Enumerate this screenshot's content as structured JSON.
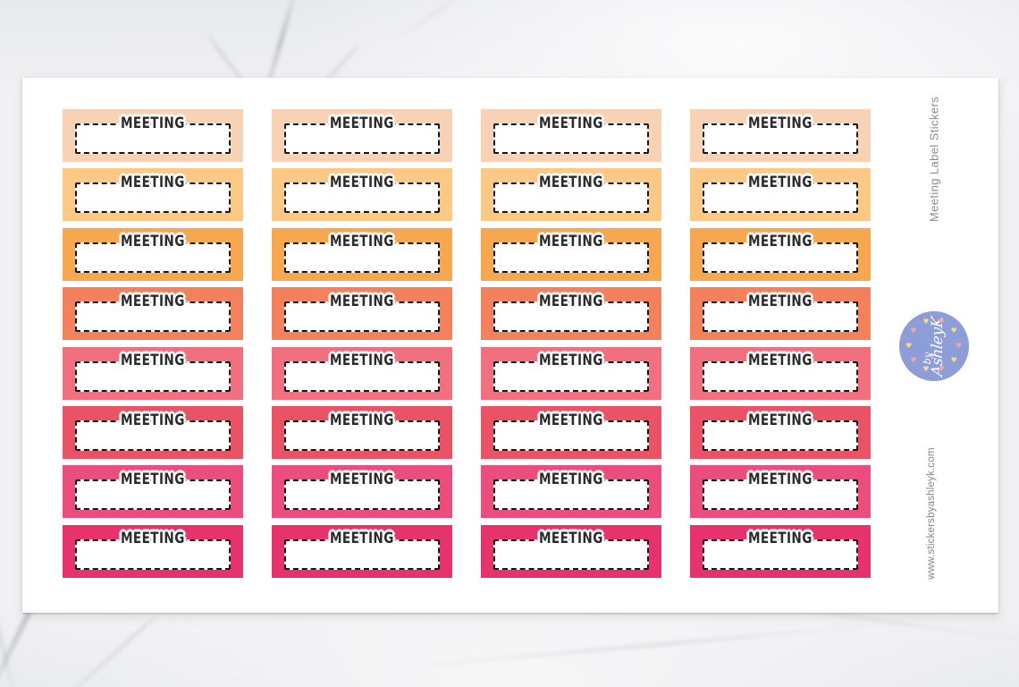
{
  "product": {
    "side_title": "Meeting Label Stickers",
    "website": "www.stickersbyashleyk.com"
  },
  "sheet": {
    "sticker_label": "MEETING",
    "columns": 4,
    "rows": 8,
    "row_colors": [
      "#f8d2b5",
      "#fbc985",
      "#f8a751",
      "#f4815d",
      "#f17080",
      "#ea5365",
      "#eb4e7d",
      "#e6336e"
    ],
    "box_border_color": "#161616",
    "box_fill": "#ffffff",
    "label_text_color": "#2b2b2b"
  },
  "logo": {
    "prefix": "by",
    "name": "AshleyK",
    "badge_color": "#8d9ed6",
    "text_color": "#ffffff",
    "dot_colors": [
      "#f2a3ae",
      "#f6d88e"
    ]
  }
}
